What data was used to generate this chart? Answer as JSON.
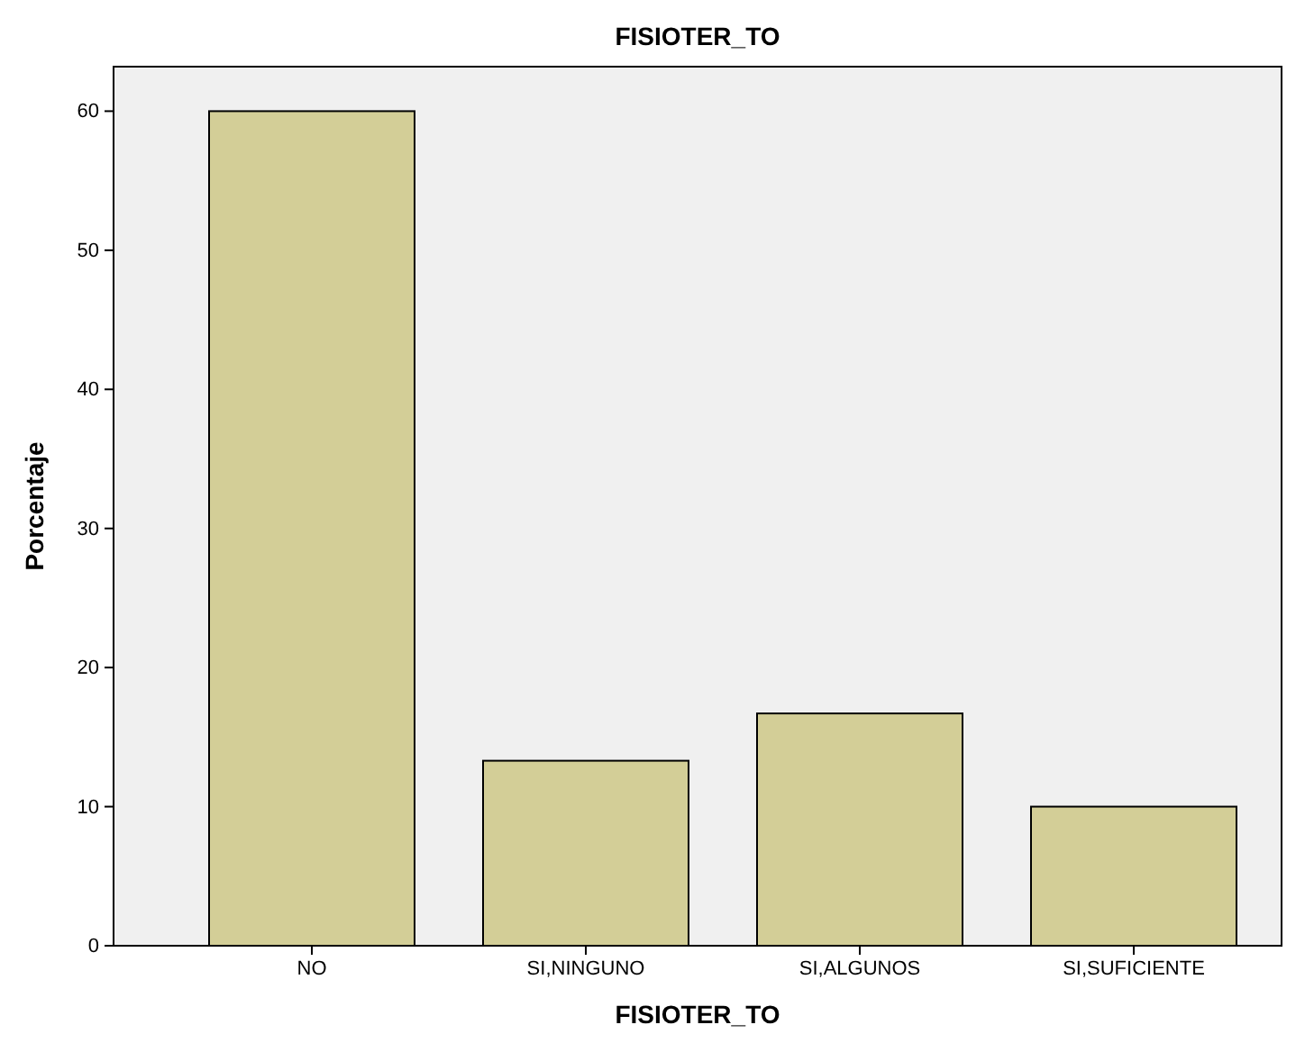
{
  "chart_data": {
    "type": "bar",
    "title": "FISIOTER_TO",
    "xlabel": "FISIOTER_TO",
    "ylabel": "Porcentaje",
    "categories": [
      "NO",
      "SI,NINGUNO",
      "SI,ALGUNOS",
      "SI,SUFICIENTE"
    ],
    "values": [
      60,
      13.3,
      16.7,
      10
    ],
    "color": "#d3ce97",
    "ylim": [
      0,
      63.2
    ],
    "yticks": [
      0,
      10,
      20,
      30,
      40,
      50,
      60
    ],
    "grid": false
  }
}
